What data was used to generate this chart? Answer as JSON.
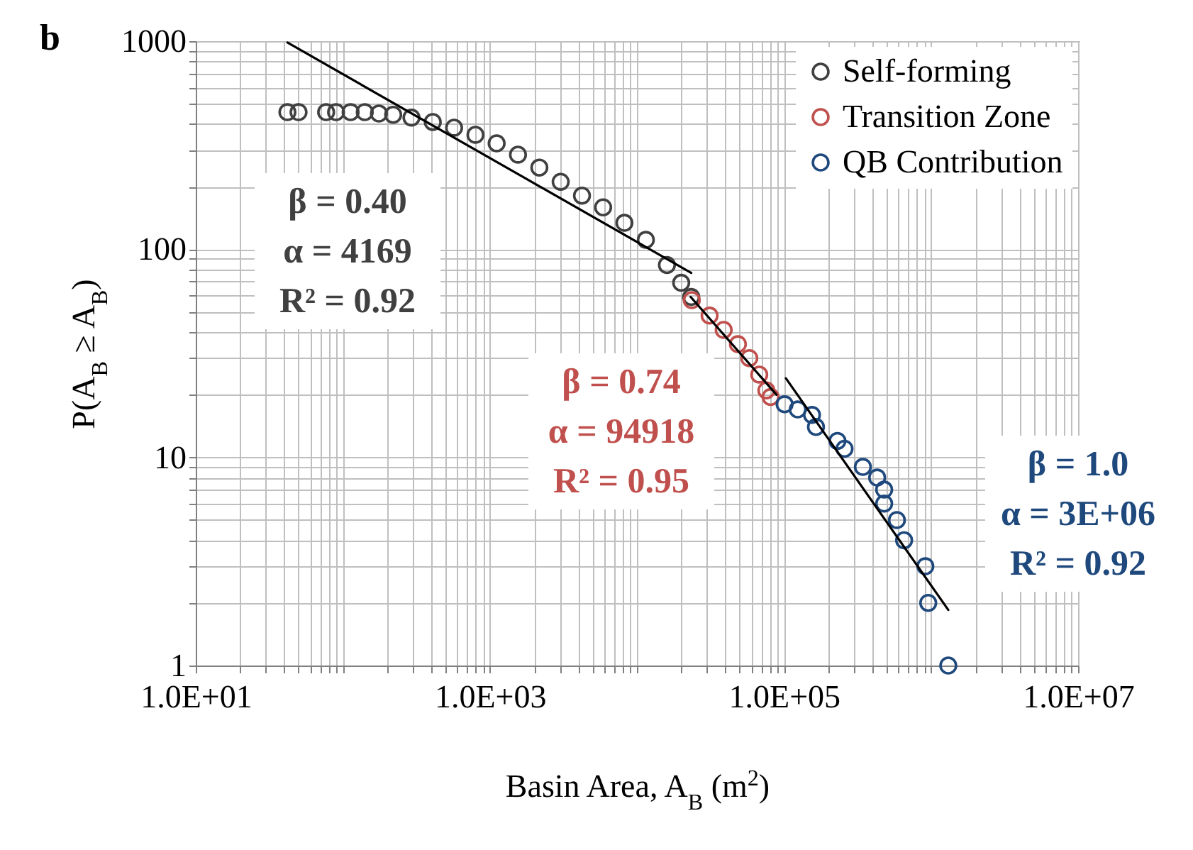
{
  "chart_data": {
    "type": "scatter",
    "title": "b",
    "xlabel": "Basin Area, A$_{B}$ (m$^{2}$)",
    "ylabel": "P(A$_{B}$ ≥ A$_{B}$)",
    "log": "xy",
    "grid": true,
    "legend": "top right",
    "marker": "circle",
    "xlim": [
      10,
      10000000
    ],
    "ylim": [
      1,
      1000
    ],
    "xticks": [
      {
        "value": 10,
        "label": "1.0E+01"
      },
      {
        "value": 20,
        "label": null
      },
      {
        "value": 30,
        "label": null
      },
      {
        "value": 40,
        "label": null
      },
      {
        "value": 50,
        "label": null
      },
      {
        "value": 60,
        "label": null
      },
      {
        "value": 70,
        "label": null
      },
      {
        "value": 80,
        "label": null
      },
      {
        "value": 90,
        "label": null
      },
      {
        "value": 100,
        "label": null
      },
      {
        "value": 200,
        "label": null
      },
      {
        "value": 300,
        "label": null
      },
      {
        "value": 400,
        "label": null
      },
      {
        "value": 500,
        "label": null
      },
      {
        "value": 600,
        "label": null
      },
      {
        "value": 700,
        "label": null
      },
      {
        "value": 800,
        "label": null
      },
      {
        "value": 900,
        "label": null
      },
      {
        "value": 1000,
        "label": "1.0E+03"
      },
      {
        "value": 2000,
        "label": null
      },
      {
        "value": 3000,
        "label": null
      },
      {
        "value": 4000,
        "label": null
      },
      {
        "value": 5000,
        "label": null
      },
      {
        "value": 6000,
        "label": null
      },
      {
        "value": 7000,
        "label": null
      },
      {
        "value": 8000,
        "label": null
      },
      {
        "value": 9000,
        "label": null
      },
      {
        "value": 10000,
        "label": null
      },
      {
        "value": 20000,
        "label": null
      },
      {
        "value": 30000,
        "label": null
      },
      {
        "value": 40000,
        "label": null
      },
      {
        "value": 50000,
        "label": null
      },
      {
        "value": 60000,
        "label": null
      },
      {
        "value": 70000,
        "label": null
      },
      {
        "value": 80000,
        "label": null
      },
      {
        "value": 90000,
        "label": null
      },
      {
        "value": 100000,
        "label": "1.0E+05"
      },
      {
        "value": 200000,
        "label": null
      },
      {
        "value": 300000,
        "label": null
      },
      {
        "value": 400000,
        "label": null
      },
      {
        "value": 500000,
        "label": null
      },
      {
        "value": 600000,
        "label": null
      },
      {
        "value": 700000,
        "label": null
      },
      {
        "value": 800000,
        "label": null
      },
      {
        "value": 900000,
        "label": null
      },
      {
        "value": 1000000,
        "label": null
      },
      {
        "value": 2000000,
        "label": null
      },
      {
        "value": 3000000,
        "label": null
      },
      {
        "value": 4000000,
        "label": null
      },
      {
        "value": 5000000,
        "label": null
      },
      {
        "value": 6000000,
        "label": null
      },
      {
        "value": 7000000,
        "label": null
      },
      {
        "value": 8000000,
        "label": null
      },
      {
        "value": 9000000,
        "label": null
      },
      {
        "value": 10000000,
        "label": "1.0E+07"
      }
    ],
    "yticks": [
      1,
      {
        "value": 2,
        "label": null
      },
      {
        "value": 3,
        "label": null
      },
      {
        "value": 4,
        "label": null
      },
      {
        "value": 5,
        "label": null
      },
      {
        "value": 6,
        "label": null
      },
      {
        "value": 7,
        "label": null
      },
      {
        "value": 8,
        "label": null
      },
      {
        "value": 9,
        "label": null
      },
      10,
      {
        "value": 20,
        "label": null
      },
      {
        "value": 30,
        "label": null
      },
      {
        "value": 40,
        "label": null
      },
      {
        "value": 50,
        "label": null
      },
      {
        "value": 60,
        "label": null
      },
      {
        "value": 70,
        "label": null
      },
      {
        "value": 80,
        "label": null
      },
      {
        "value": 90,
        "label": null
      },
      100,
      {
        "value": 200,
        "label": null
      },
      {
        "value": 300,
        "label": null
      },
      {
        "value": 400,
        "label": null
      },
      {
        "value": 500,
        "label": null
      },
      {
        "value": 600,
        "label": null
      },
      {
        "value": 700,
        "label": null
      },
      {
        "value": 800,
        "label": null
      },
      {
        "value": 900,
        "label": null
      },
      1000
    ],
    "series": [
      {
        "name": "Self-forming",
        "color": "#404040",
        "x": [
          42,
          50,
          77,
          90,
          113,
          141,
          176,
          220,
          293,
          409,
          571,
          798,
          1112,
          1553,
          2170,
          3030,
          4230,
          5890,
          8220,
          11500,
          16000,
          20000,
          23400
        ],
        "values": [
          456,
          456,
          456,
          456,
          456,
          456,
          449,
          443,
          429,
          409,
          384,
          355,
          323,
          285,
          247,
          211,
          181,
          159,
          134,
          111,
          84,
          69,
          59
        ]
      },
      {
        "name": "Transition Zone",
        "color": "#c0504d",
        "x": [
          23600,
          31200,
          38900,
          48600,
          58100,
          67900,
          75900,
          81100
        ],
        "values": [
          57,
          48,
          41,
          35,
          30,
          25,
          21,
          19.5
        ]
      },
      {
        "name": "QB Contribution",
        "color": "#1f497d",
        "x": [
          101000,
          124000,
          155000,
          165000,
          231000,
          258000,
          344000,
          430000,
          480000,
          480000,
          586000,
          656000,
          915000,
          957000,
          1310000
        ],
        "values": [
          18,
          17,
          16,
          14,
          12,
          11,
          9,
          8,
          7,
          6,
          5,
          4,
          3,
          2,
          1
        ]
      },
      {
        "type": "line",
        "marker": "none",
        "color": "#000000",
        "x": [
          42,
          23400
        ],
        "values": [
          985,
          77
        ]
      },
      {
        "type": "line",
        "marker": "none",
        "color": "#000000",
        "x": [
          23200,
          89000
        ],
        "values": [
          59,
          20
        ]
      },
      {
        "type": "line",
        "marker": "none",
        "color": "#000000",
        "x": [
          103000,
          1310000
        ],
        "values": [
          24,
          1.85
        ]
      }
    ],
    "annotations": [
      "β = 0.40",
      "α = 4169",
      "R² = 0.92",
      "β = 0.74",
      "α = 94918",
      "R² = 0.95",
      "β = 1.0",
      "α = 3E+06",
      "R² = 0.92"
    ]
  }
}
